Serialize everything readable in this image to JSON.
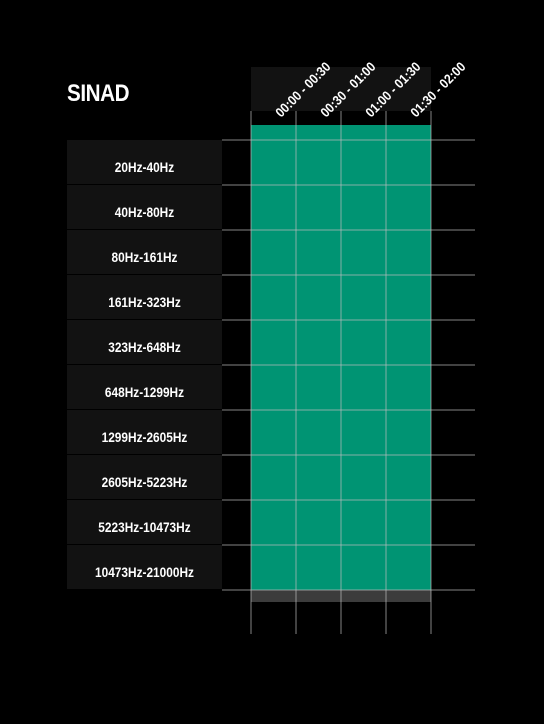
{
  "chart_data": {
    "type": "heatmap",
    "title": "SINAD",
    "rows": [
      "20Hz-40Hz",
      "40Hz-80Hz",
      "80Hz-161Hz",
      "161Hz-323Hz",
      "323Hz-648Hz",
      "648Hz-1299Hz",
      "1299Hz-2605Hz",
      "2605Hz-5223Hz",
      "5223Hz-10473Hz",
      "10473Hz-21000Hz"
    ],
    "columns": [
      "00:00 - 00:30",
      "00:30 - 01:00",
      "01:00 - 01:30",
      "01:30 - 02:00"
    ],
    "cell_color": "#009473",
    "grid": true
  },
  "colors": {
    "background": "#000000",
    "label_bg": "#121212",
    "cell": "#009473",
    "gridline": "#bdbdbd",
    "footer_bar": "#3c3c3c",
    "text": "#ffffff"
  }
}
